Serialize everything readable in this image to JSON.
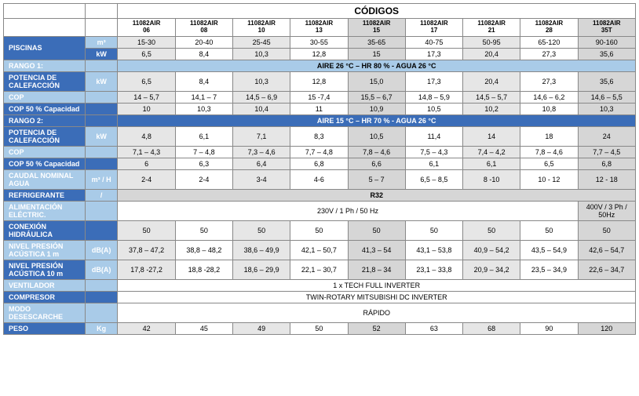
{
  "title": "CÓDIGOS",
  "models": [
    "11082AIR06",
    "11082AIR08",
    "11082AIR10",
    "11082AIR13",
    "11082AIR15",
    "11082AIR17",
    "11082AIR21",
    "11082AIR28",
    "11082AIR35T"
  ],
  "labels": {
    "piscinas": "PISCINAS",
    "kw": "kW",
    "m3": "m³",
    "rango1": "RANGO 1:",
    "rango1_band": "AIRE 26 °C – HR 80 % - AGUA 26 °C",
    "pot_calef": "POTENCIA DE CALEFACCIÓN",
    "cop": "COP",
    "cop50": "COP 50 % Capacidad",
    "rango2": "RANGO 2:",
    "rango2_band": "AIRE 15 °C – HR 70 % - AGUA 26 °C",
    "caudal": "CAUDAL NOMINAL AGUA",
    "m3h": "m³ / H",
    "refrig": "REFRIGERANTE",
    "refrig_val": "R32",
    "slash": "/",
    "alim": "ALIMENTACIÓN ELÉCTRIC.",
    "alim_val1": "230V / 1 Ph / 50 Hz",
    "alim_val2": "400V / 3 Ph / 50Hz",
    "hidro": "CONEXIÓN HIDRÁULICA",
    "np1": "NIVEL PRESIÓN ACÚSTICA 1 m",
    "np10": "NIVEL PRESIÓN ACÚSTICA 10 m",
    "dba": "dB(A)",
    "vent": "VENTILADOR",
    "vent_val": "1 x TECH FULL INVERTER",
    "comp": "COMPRESOR",
    "comp_val": "TWIN-ROTARY MITSUBISHI DC INVERTER",
    "modo": "MODO DESESCARCHE",
    "modo_val": "RÁPIDO",
    "peso": "PESO",
    "kg": "Kg"
  },
  "rows": {
    "piscinas_m3": [
      "15-30",
      "20-40",
      "25-45",
      "30-55",
      "35-65",
      "40-75",
      "50-95",
      "65-120",
      "90-160"
    ],
    "piscinas_kw": [
      "6,5",
      "8,4",
      "10,3",
      "12,8",
      "15",
      "17,3",
      "20,4",
      "27,3",
      "35,6"
    ],
    "r1_pot": [
      "6,5",
      "8,4",
      "10,3",
      "12,8",
      "15,0",
      "17,3",
      "20,4",
      "27,3",
      "35,6"
    ],
    "r1_cop": [
      "14 – 5,7",
      "14,1 – 7",
      "14,5 – 6,9",
      "15 -7,4",
      "15,5 – 6,7",
      "14,8 – 5,9",
      "14,5 – 5,7",
      "14,6 – 6,2",
      "14,6 – 5,5"
    ],
    "r1_cop50": [
      "10",
      "10,3",
      "10,4",
      "11",
      "10,9",
      "10,5",
      "10,2",
      "10,8",
      "10,3"
    ],
    "r2_pot": [
      "4,8",
      "6,1",
      "7,1",
      "8,3",
      "10,5",
      "11,4",
      "14",
      "18",
      "24"
    ],
    "r2_cop": [
      "7,1 – 4,3",
      "7 – 4,8",
      "7,3 – 4,6",
      "7,7 – 4,8",
      "7,8 – 4,6",
      "7,5 – 4,3",
      "7,4 – 4,2",
      "7,8 – 4,6",
      "7,7 – 4,5"
    ],
    "r2_cop50": [
      "6",
      "6,3",
      "6,4",
      "6,8",
      "6,6",
      "6,1",
      "6,1",
      "6,5",
      "6,8"
    ],
    "caudal": [
      "2-4",
      "2-4",
      "3-4",
      "4-6",
      "5 – 7",
      "6,5 – 8,5",
      "8 -10",
      "10 - 12",
      "12 - 18"
    ],
    "hidro": [
      "50",
      "50",
      "50",
      "50",
      "50",
      "50",
      "50",
      "50",
      "50"
    ],
    "np1": [
      "37,8 – 47,2",
      "38,8 – 48,2",
      "38,6 – 49,9",
      "42,1 – 50,7",
      "41,3 – 54",
      "43,1 – 53,8",
      "40,9 – 54,2",
      "43,5 – 54,9",
      "42,6 – 54,7"
    ],
    "np10": [
      "17,8 -27,2",
      "18,8 -28,2",
      "18,6 – 29,9",
      "22,1 – 30,7",
      "21,8 – 34",
      "23,1 – 33,8",
      "20,9 – 34,2",
      "23,5 – 34,9",
      "22,6 – 34,7"
    ],
    "peso": [
      "42",
      "45",
      "49",
      "50",
      "52",
      "63",
      "68",
      "90",
      "120"
    ]
  },
  "style": {
    "col_widths": {
      "label": 95,
      "unit": 38,
      "data": 67
    },
    "highlight_cols": [
      4,
      8
    ],
    "colors": {
      "dark_blue": "#3b6db8",
      "light_blue": "#a9cbe8",
      "gray": "#e6e6e6",
      "col_gray": "#d6d6d6",
      "white": "#ffffff",
      "border": "#888888"
    },
    "font_size_pt": 9,
    "title_font_size_pt": 12
  }
}
